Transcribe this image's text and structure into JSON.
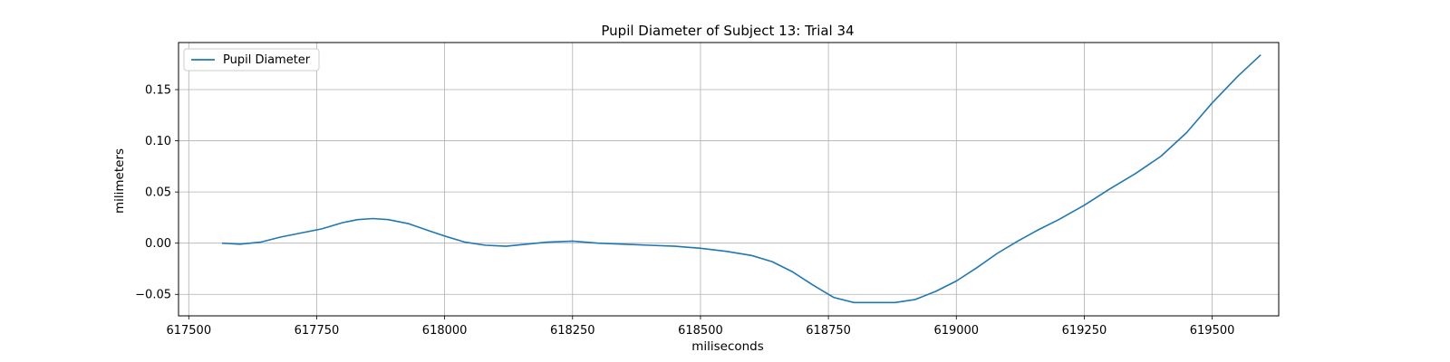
{
  "chart_data": {
    "type": "line",
    "title": "Pupil Diameter of Subject 13: Trial 34",
    "xlabel": "miliseconds",
    "ylabel": "milimeters",
    "xlim": [
      617480,
      619630
    ],
    "ylim": [
      -0.071,
      0.196
    ],
    "xticks": [
      617500,
      617750,
      618000,
      618250,
      618500,
      618750,
      619000,
      619250,
      619500
    ],
    "yticks": [
      -0.05,
      0.0,
      0.05,
      0.1,
      0.15
    ],
    "ytick_labels": [
      "−0.05",
      "0.00",
      "0.05",
      "0.10",
      "0.15"
    ],
    "grid": true,
    "legend_position": "top-left",
    "series": [
      {
        "name": "Pupil Diameter",
        "color": "#1f77b4",
        "x": [
          617565,
          617600,
          617640,
          617680,
          617720,
          617760,
          617800,
          617830,
          617860,
          617890,
          617930,
          617970,
          618000,
          618040,
          618080,
          618120,
          618160,
          618200,
          618250,
          618300,
          618350,
          618400,
          618450,
          618500,
          618550,
          618600,
          618640,
          618680,
          618720,
          618760,
          618800,
          618840,
          618880,
          618920,
          618960,
          619000,
          619040,
          619080,
          619120,
          619160,
          619200,
          619250,
          619300,
          619350,
          619400,
          619450,
          619500,
          619550,
          619595
        ],
        "y": [
          0.0,
          -0.001,
          0.001,
          0.006,
          0.01,
          0.014,
          0.02,
          0.023,
          0.024,
          0.023,
          0.019,
          0.012,
          0.007,
          0.001,
          -0.002,
          -0.003,
          -0.001,
          0.001,
          0.002,
          0.0,
          -0.001,
          -0.002,
          -0.003,
          -0.005,
          -0.008,
          -0.012,
          -0.018,
          -0.028,
          -0.041,
          -0.053,
          -0.058,
          -0.058,
          -0.058,
          -0.055,
          -0.047,
          -0.037,
          -0.024,
          -0.01,
          0.002,
          0.013,
          0.023,
          0.037,
          0.053,
          0.068,
          0.085,
          0.108,
          0.137,
          0.163,
          0.184
        ]
      }
    ]
  }
}
